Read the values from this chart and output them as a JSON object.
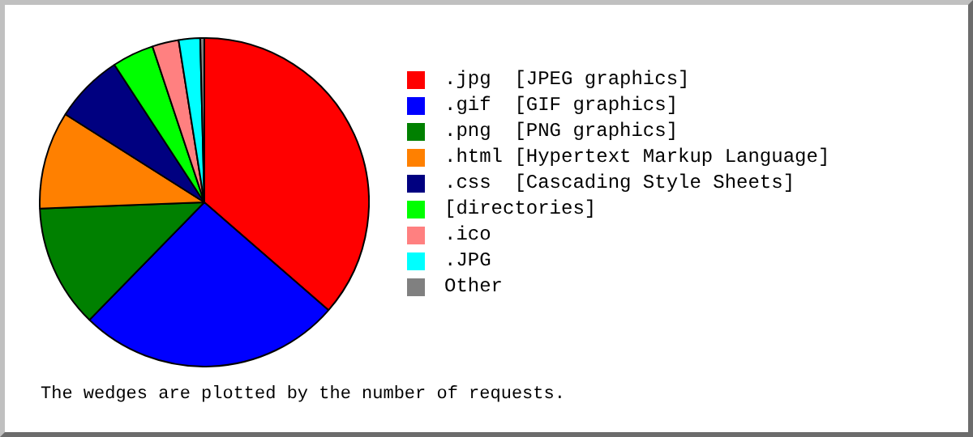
{
  "chart_data": {
    "type": "pie",
    "categories": [
      ".jpg  [JPEG graphics]",
      ".gif  [GIF graphics]",
      ".png  [PNG graphics]",
      ".html [Hypertext Markup Language]",
      ".css  [Cascading Style Sheets]",
      "[directories]",
      ".ico",
      ".JPG",
      "Other"
    ],
    "values": [
      36.4,
      25.9,
      12.1,
      9.6,
      6.8,
      4.1,
      2.6,
      2.1,
      0.4
    ],
    "colors": [
      "#ff0000",
      "#0000ff",
      "#008000",
      "#ff8000",
      "#000080",
      "#00ff00",
      "#ff8080",
      "#00ffff",
      "#808080"
    ],
    "legend": "right",
    "annotations": [
      "The wedges are plotted by the number of requests."
    ]
  }
}
